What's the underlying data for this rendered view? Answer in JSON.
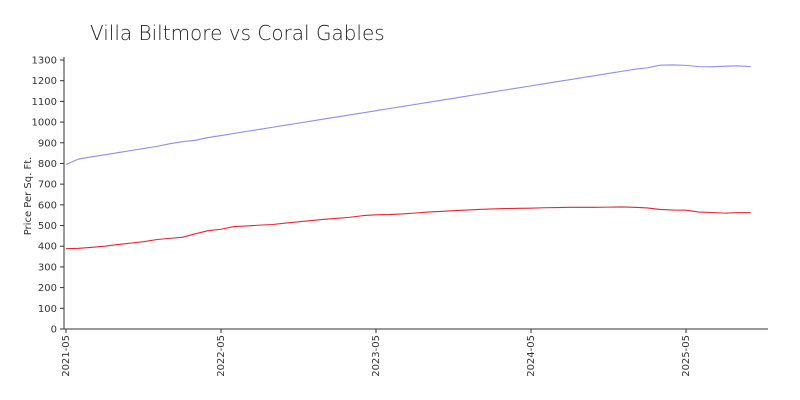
{
  "chart_data": {
    "type": "line",
    "title": "Villa Biltmore vs Coral Gables",
    "xlabel": "",
    "ylabel": "Price Per Sq. Ft.",
    "ylim": [
      0,
      1300
    ],
    "yticks": [
      0,
      100,
      200,
      300,
      400,
      500,
      600,
      700,
      800,
      900,
      1000,
      1100,
      1200,
      1300
    ],
    "xticks": [
      "2021-05",
      "2022-05",
      "2023-05",
      "2024-05",
      "2025-05"
    ],
    "x": [
      "2021-05",
      "2021-06",
      "2021-07",
      "2021-08",
      "2021-09",
      "2021-10",
      "2021-11",
      "2021-12",
      "2022-01",
      "2022-02",
      "2022-03",
      "2022-04",
      "2022-05",
      "2022-06",
      "2022-07",
      "2022-08",
      "2022-09",
      "2022-10",
      "2022-11",
      "2022-12",
      "2023-01",
      "2023-02",
      "2023-03",
      "2023-04",
      "2023-05",
      "2023-06",
      "2023-07",
      "2023-08",
      "2023-09",
      "2023-10",
      "2023-11",
      "2023-12",
      "2024-01",
      "2024-02",
      "2024-03",
      "2024-04",
      "2024-05",
      "2024-06",
      "2024-07",
      "2024-08",
      "2024-09",
      "2024-10",
      "2024-11",
      "2024-12",
      "2025-01",
      "2025-02",
      "2025-03",
      "2025-04",
      "2025-05",
      "2025-06",
      "2025-07",
      "2025-08",
      "2025-09",
      "2025-10"
    ],
    "series": [
      {
        "color": "#8a8ff0",
        "values": [
          795,
          822,
          832,
          842,
          852,
          862,
          872,
          882,
          895,
          905,
          912,
          925,
          935,
          945,
          955,
          965,
          975,
          985,
          995,
          1005,
          1015,
          1025,
          1035,
          1045,
          1055,
          1065,
          1075,
          1085,
          1095,
          1105,
          1115,
          1125,
          1135,
          1145,
          1155,
          1165,
          1175,
          1185,
          1195,
          1205,
          1215,
          1225,
          1235,
          1245,
          1255,
          1262,
          1275,
          1276,
          1274,
          1268,
          1267,
          1270,
          1272,
          1268
        ]
      },
      {
        "color": "#e8262a",
        "values": [
          388,
          390,
          395,
          400,
          408,
          415,
          422,
          432,
          438,
          443,
          460,
          475,
          482,
          495,
          498,
          502,
          505,
          512,
          518,
          524,
          530,
          535,
          540,
          548,
          552,
          553,
          556,
          560,
          565,
          568,
          572,
          575,
          578,
          580,
          582,
          583,
          584,
          586,
          587,
          588,
          588,
          588,
          589,
          590,
          588,
          585,
          578,
          575,
          574,
          565,
          563,
          560,
          562,
          562
        ]
      }
    ],
    "grid": false,
    "legend": "none"
  }
}
